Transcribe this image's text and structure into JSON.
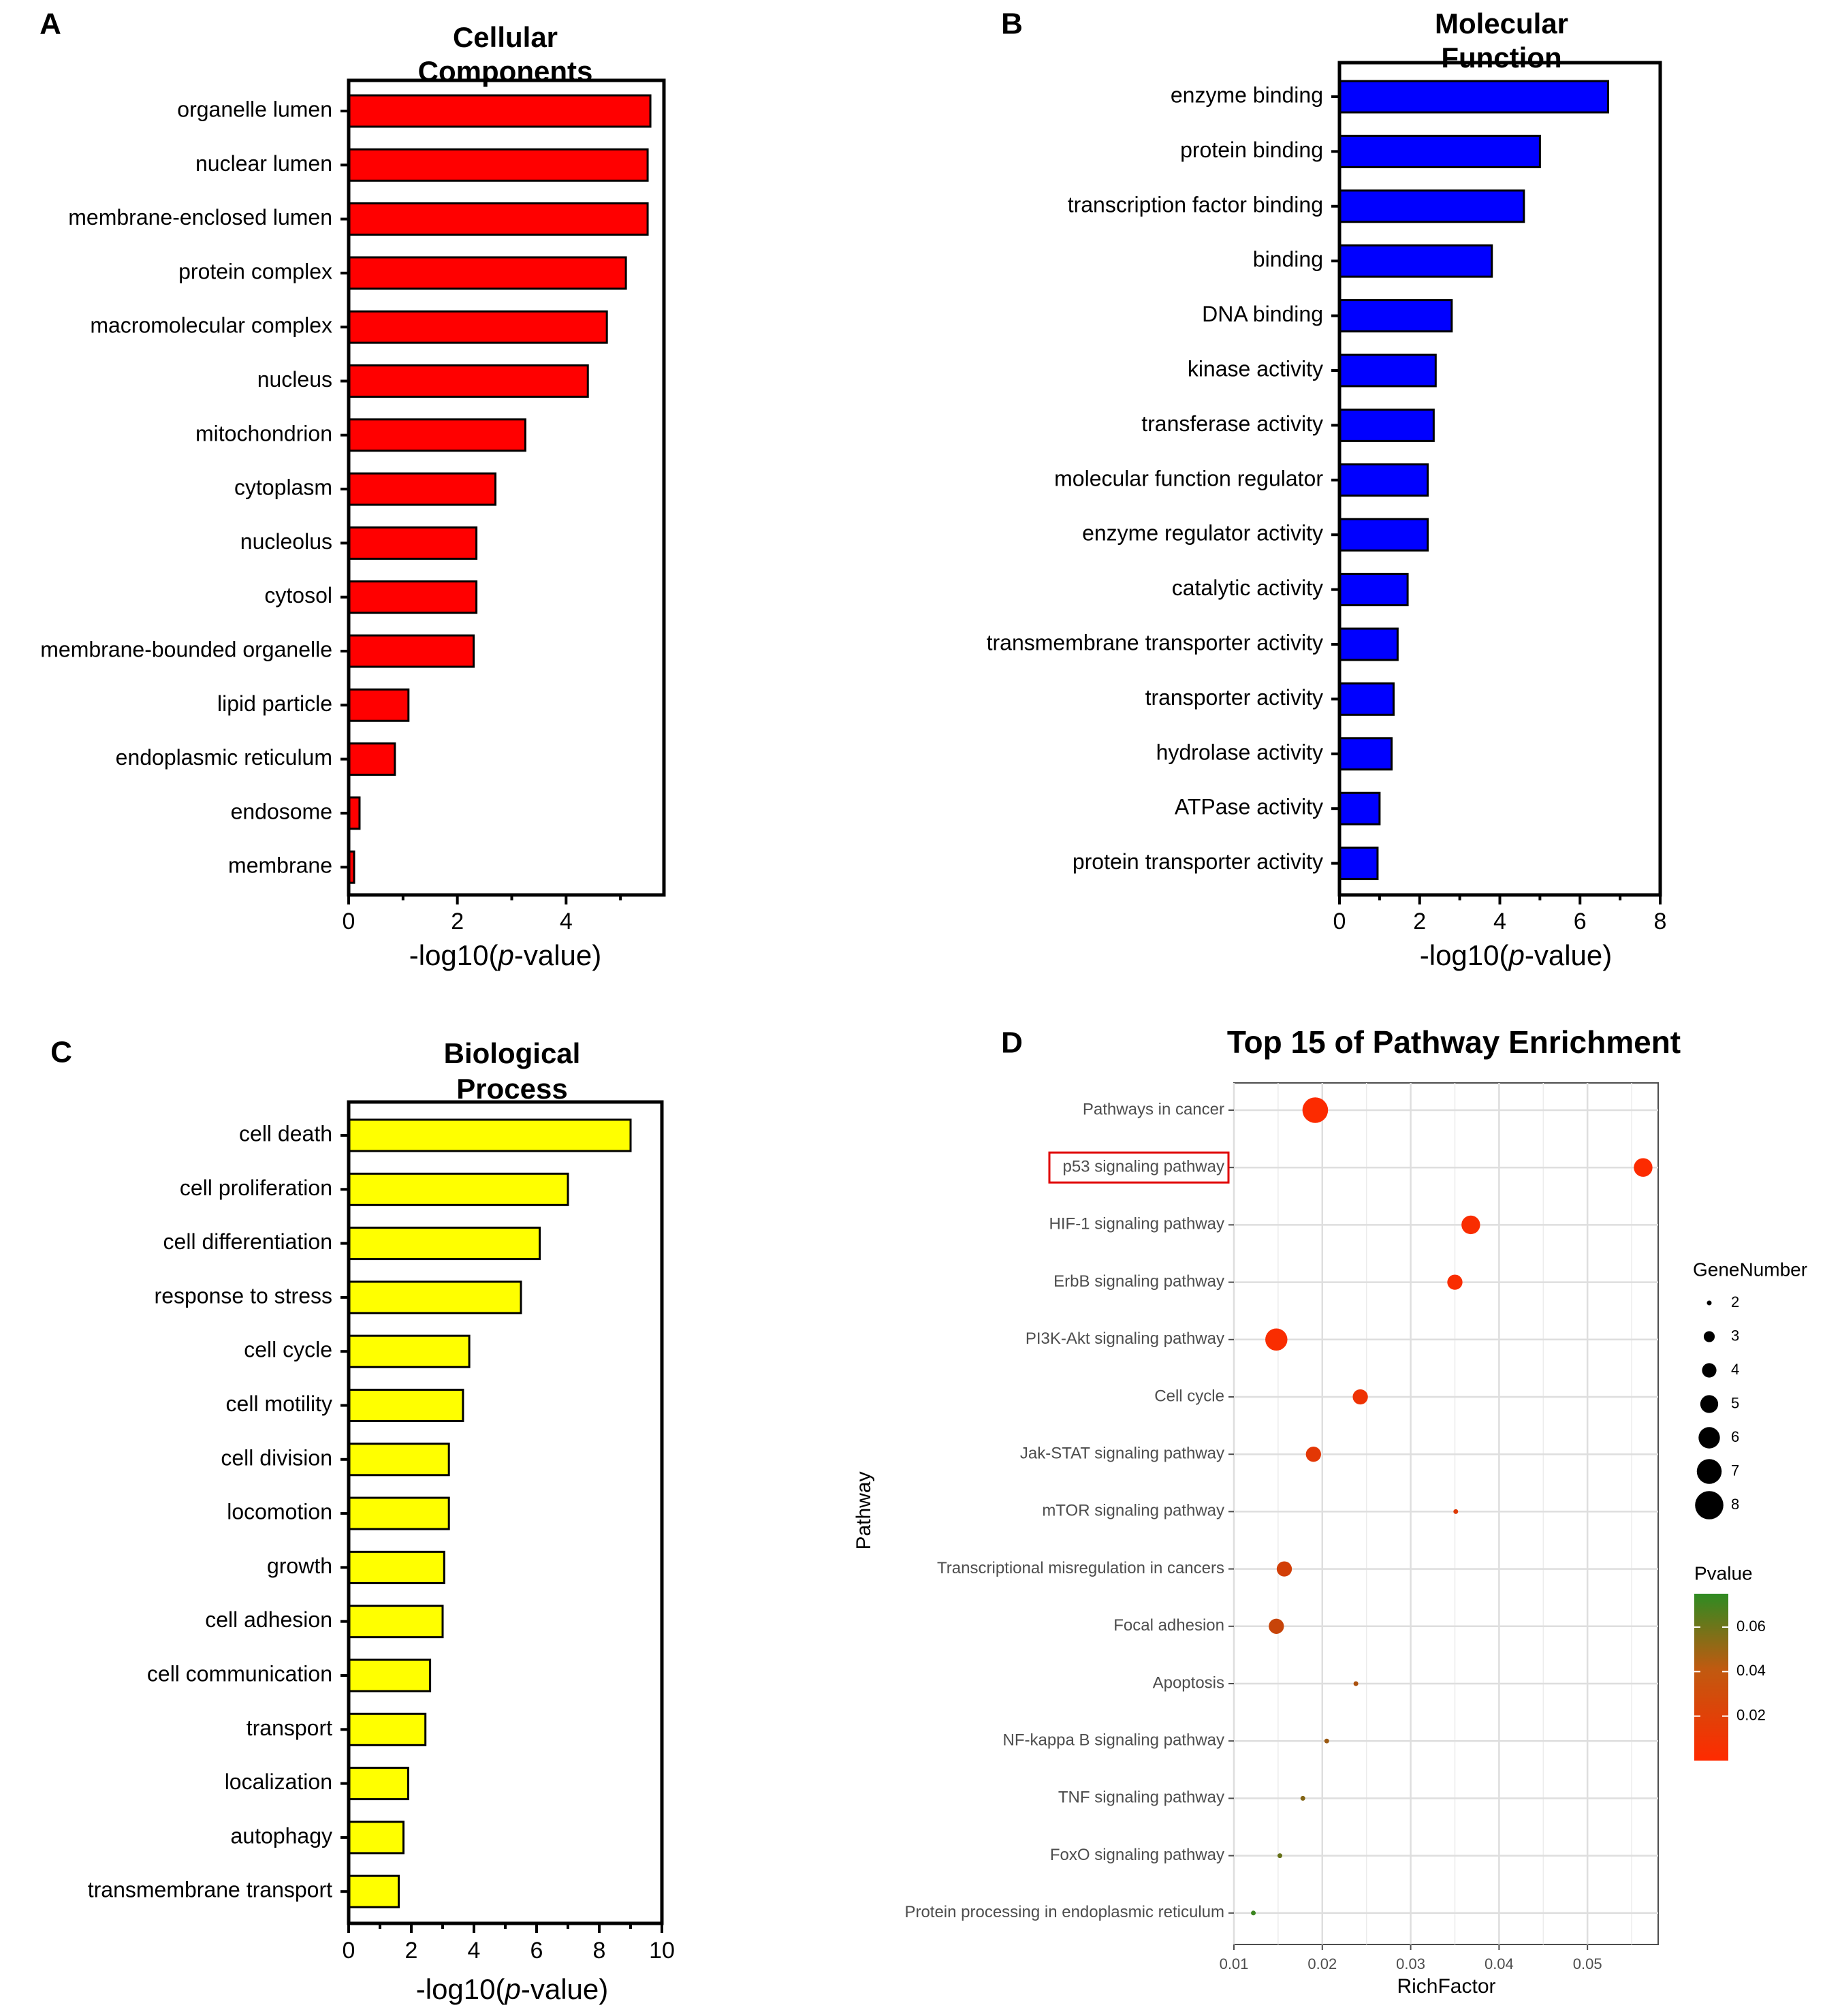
{
  "chart_data": [
    {
      "panel": "A",
      "type": "bar",
      "orientation": "horizontal",
      "title": "Cellular Components",
      "title_lines": [
        "Cellular",
        "Components"
      ],
      "xlabel": "-log10(p-value)",
      "xlabel_parts": [
        "-log10(",
        "p",
        "-value)"
      ],
      "xlim": [
        0,
        5.8
      ],
      "xticks": [
        0,
        2,
        4
      ],
      "color": "#ff0000",
      "categories": [
        "organelle lumen",
        "nuclear lumen",
        "membrane-enclosed lumen",
        "protein complex",
        "macromolecular complex",
        "nucleus",
        "mitochondrion",
        "cytoplasm",
        "nucleolus",
        "cytosol",
        "membrane-bounded organelle",
        "lipid particle",
        "endoplasmic reticulum",
        "endosome",
        "membrane"
      ],
      "values": [
        5.55,
        5.5,
        5.5,
        5.1,
        4.75,
        4.4,
        3.25,
        2.7,
        2.35,
        2.35,
        2.3,
        1.1,
        0.85,
        0.2,
        0.1
      ]
    },
    {
      "panel": "B",
      "type": "bar",
      "orientation": "horizontal",
      "title": "Molecular Function",
      "title_lines": [
        "Molecular",
        "Function"
      ],
      "xlabel": "-log10(p-value)",
      "xlabel_parts": [
        "-log10(",
        "p",
        "-value)"
      ],
      "xlim": [
        0,
        8
      ],
      "xticks": [
        0,
        2,
        4,
        6,
        8
      ],
      "color": "#0000ff",
      "categories": [
        "enzyme binding",
        "protein binding",
        "transcription factor binding",
        "binding",
        "DNA binding",
        "kinase activity",
        "transferase activity",
        "molecular function regulator",
        "enzyme regulator activity",
        "catalytic activity",
        "transmembrane transporter activity",
        "transporter activity",
        "hydrolase activity",
        "ATPase activity",
        "protein transporter activity"
      ],
      "values": [
        6.7,
        5.0,
        4.6,
        3.8,
        2.8,
        2.4,
        2.35,
        2.2,
        2.2,
        1.7,
        1.45,
        1.35,
        1.3,
        1.0,
        0.95
      ]
    },
    {
      "panel": "C",
      "type": "bar",
      "orientation": "horizontal",
      "title": "Biological Process",
      "title_lines": [
        "Biological",
        "Process"
      ],
      "xlabel": "-log10(p-value)",
      "xlabel_parts": [
        "-log10(",
        "p",
        "-value)"
      ],
      "xlim": [
        0,
        10
      ],
      "xticks": [
        0,
        2,
        4,
        6,
        8,
        10
      ],
      "color": "#ffff00",
      "categories": [
        "cell death",
        "cell proliferation",
        "cell differentiation",
        "response to stress",
        "cell cycle",
        "cell motility",
        "cell division",
        "locomotion",
        "growth",
        "cell adhesion",
        "cell communication",
        "transport",
        "localization",
        "autophagy",
        "transmembrane transport"
      ],
      "values": [
        9.0,
        7.0,
        6.1,
        5.5,
        3.85,
        3.65,
        3.2,
        3.2,
        3.05,
        3.0,
        2.6,
        2.45,
        1.9,
        1.75,
        1.6
      ]
    },
    {
      "panel": "D",
      "type": "scatter",
      "title": "Top 15 of Pathway Enrichment",
      "xlabel": "RichFactor",
      "ylabel": "Pathway",
      "xlim": [
        0.01,
        0.058
      ],
      "xticks": [
        0.01,
        0.02,
        0.03,
        0.04,
        0.05
      ],
      "xtick_labels": [
        "0.01",
        "0.02",
        "0.03",
        "0.04",
        "0.05"
      ],
      "highlighted": "p53 signaling pathway",
      "categories": [
        "Pathways in cancer",
        "p53 signaling pathway",
        "HIF-1 signaling pathway",
        "ErbB signaling pathway",
        "PI3K-Akt signaling pathway",
        "Cell cycle",
        "Jak-STAT signaling pathway",
        "mTOR signaling pathway",
        "Transcriptional misregulation in cancers",
        "Focal adhesion",
        "Apoptosis",
        "NF-kappa B signaling pathway",
        "TNF signaling pathway",
        "FoxO signaling pathway",
        "Protein processing in endoplasmic reticulum"
      ],
      "x": [
        0.0192,
        0.0563,
        0.0368,
        0.035,
        0.0148,
        0.0243,
        0.019,
        0.0351,
        0.0157,
        0.0148,
        0.0238,
        0.0205,
        0.0178,
        0.0152,
        0.0122
      ],
      "gene_number": [
        8,
        6,
        6,
        5,
        7,
        5,
        5,
        2,
        5,
        5,
        2,
        2,
        2,
        2,
        2
      ],
      "pvalue": [
        0.001,
        0.001,
        0.002,
        0.002,
        0.002,
        0.006,
        0.01,
        0.012,
        0.016,
        0.02,
        0.03,
        0.036,
        0.045,
        0.055,
        0.07
      ],
      "size_legend_title": "GeneNumber",
      "size_legend": [
        2,
        3,
        4,
        5,
        6,
        7,
        8
      ],
      "color_legend_title": "Pvalue",
      "color_legend_range": [
        0,
        0.075
      ],
      "color_legend_ticks": [
        0.02,
        0.04,
        0.06
      ],
      "color_legend_tick_labels": [
        "0.02",
        "0.04",
        "0.06"
      ],
      "color_low": "#ff2a00",
      "color_high": "#2e8b22"
    }
  ]
}
